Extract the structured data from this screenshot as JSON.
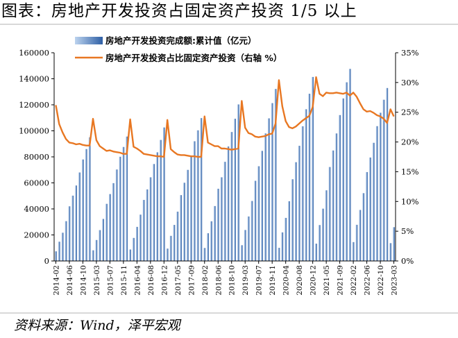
{
  "page": {
    "title": "图表：房地产开发投资占固定资产投资 1/5 以上",
    "source": "资料来源：Wind，泽平宏观"
  },
  "colors": {
    "bar_light": "#bcd3ee",
    "bar_dark": "#2e5fa5",
    "line": "#e87722",
    "axis": "#000000"
  },
  "chart_data": {
    "type": "bar",
    "title": "",
    "xlabel": "",
    "ylabel": "",
    "ylim": [
      0,
      160000
    ],
    "y2lim": [
      0,
      35
    ],
    "y_ticks": [
      "0",
      "20000",
      "40000",
      "60000",
      "80000",
      "100000",
      "120000",
      "140000",
      "160000"
    ],
    "y2_ticks": [
      "0%",
      "5%",
      "10%",
      "15%",
      "20%",
      "25%",
      "30%",
      "35%"
    ],
    "legend_position": "top",
    "grid": false,
    "x_tick_labels": [
      "2014-02",
      "2014-06",
      "2014-10",
      "2015-03",
      "2015-07",
      "2015-11",
      "2016-04",
      "2016-08",
      "2016-12",
      "2017-05",
      "2017-09",
      "2018-02",
      "2018-06",
      "2018-10",
      "2019-03",
      "2019-07",
      "2019-11",
      "2020-04",
      "2020-08",
      "2020-12",
      "2021-05",
      "2021-09",
      "2022-02",
      "2022-06",
      "2022-10",
      "2023-03"
    ],
    "categories": [
      "2014-02",
      "2014-03",
      "2014-04",
      "2014-05",
      "2014-06",
      "2014-07",
      "2014-08",
      "2014-09",
      "2014-10",
      "2014-11",
      "2014-12",
      "2015-02",
      "2015-03",
      "2015-04",
      "2015-05",
      "2015-06",
      "2015-07",
      "2015-08",
      "2015-09",
      "2015-10",
      "2015-11",
      "2015-12",
      "2016-02",
      "2016-03",
      "2016-04",
      "2016-05",
      "2016-06",
      "2016-07",
      "2016-08",
      "2016-09",
      "2016-10",
      "2016-11",
      "2016-12",
      "2017-02",
      "2017-03",
      "2017-04",
      "2017-05",
      "2017-06",
      "2017-07",
      "2017-08",
      "2017-09",
      "2017-10",
      "2017-11",
      "2017-12",
      "2018-02",
      "2018-03",
      "2018-04",
      "2018-05",
      "2018-06",
      "2018-07",
      "2018-08",
      "2018-09",
      "2018-10",
      "2018-11",
      "2018-12",
      "2019-02",
      "2019-03",
      "2019-04",
      "2019-05",
      "2019-06",
      "2019-07",
      "2019-08",
      "2019-09",
      "2019-10",
      "2019-11",
      "2019-12",
      "2020-02",
      "2020-03",
      "2020-04",
      "2020-05",
      "2020-06",
      "2020-07",
      "2020-08",
      "2020-09",
      "2020-10",
      "2020-11",
      "2020-12",
      "2021-02",
      "2021-03",
      "2021-04",
      "2021-05",
      "2021-06",
      "2021-07",
      "2021-08",
      "2021-09",
      "2021-10",
      "2021-11",
      "2021-12",
      "2022-02",
      "2022-03",
      "2022-04",
      "2022-05",
      "2022-06",
      "2022-07",
      "2022-08",
      "2022-09",
      "2022-10",
      "2022-11",
      "2022-12",
      "2023-02",
      "2023-03"
    ],
    "series": [
      {
        "name": "房地产开发投资完成额:累计值（亿元）",
        "type": "bar",
        "axis": "left",
        "values": [
          7400,
          14800,
          21700,
          30600,
          42000,
          50200,
          58000,
          68000,
          78000,
          86000,
          95000,
          8200,
          16100,
          23700,
          32300,
          43900,
          51400,
          59800,
          70300,
          80100,
          87600,
          95600,
          8800,
          17700,
          26200,
          35600,
          46900,
          55000,
          64300,
          74500,
          83500,
          93000,
          102600,
          9500,
          19300,
          27700,
          37900,
          50600,
          60100,
          70000,
          80600,
          92000,
          100400,
          109800,
          10000,
          21300,
          30500,
          42200,
          55500,
          64300,
          76200,
          88000,
          99100,
          109300,
          120300,
          12100,
          23800,
          34200,
          46100,
          61600,
          72800,
          84600,
          98000,
          109600,
          121300,
          132200,
          10100,
          21960,
          33100,
          45900,
          62800,
          75900,
          88500,
          103500,
          116600,
          128500,
          141400,
          13300,
          27600,
          40200,
          54300,
          72200,
          84900,
          98000,
          112100,
          124900,
          137300,
          147600,
          14500,
          27800,
          39200,
          52100,
          68300,
          79500,
          90800,
          103600,
          113900,
          123900,
          132900,
          13700,
          25970
        ]
      },
      {
        "name": "房地产开发投资占比固定资产投资（右轴 %）",
        "type": "line",
        "axis": "right",
        "values": [
          26.2,
          23.0,
          21.6,
          20.5,
          19.9,
          19.8,
          19.6,
          19.7,
          19.5,
          19.4,
          19.4,
          23.9,
          20.3,
          19.3,
          18.9,
          18.5,
          18.6,
          18.4,
          18.3,
          18.2,
          18.0,
          18.0,
          23.8,
          19.2,
          18.9,
          18.5,
          18.0,
          17.9,
          17.8,
          17.7,
          17.6,
          17.6,
          17.5,
          23.7,
          18.8,
          18.3,
          17.9,
          17.8,
          17.8,
          17.7,
          17.6,
          17.6,
          17.5,
          17.5,
          24.3,
          19.9,
          19.6,
          19.3,
          19.3,
          18.9,
          18.9,
          18.8,
          18.7,
          18.8,
          18.9,
          26.9,
          22.4,
          21.5,
          21.3,
          20.9,
          20.8,
          20.9,
          21.0,
          21.3,
          21.4,
          23.1,
          30.4,
          26.0,
          23.5,
          22.5,
          22.3,
          22.6,
          23.1,
          23.6,
          24.0,
          24.4,
          25.9,
          30.9,
          28.1,
          27.7,
          28.3,
          28.2,
          28.2,
          28.3,
          28.2,
          28.1,
          28.3,
          27.8,
          28.3,
          27.6,
          26.5,
          25.5,
          25.1,
          25.2,
          24.9,
          24.5,
          24.3,
          23.9,
          23.2,
          25.5,
          24.3
        ]
      }
    ]
  }
}
